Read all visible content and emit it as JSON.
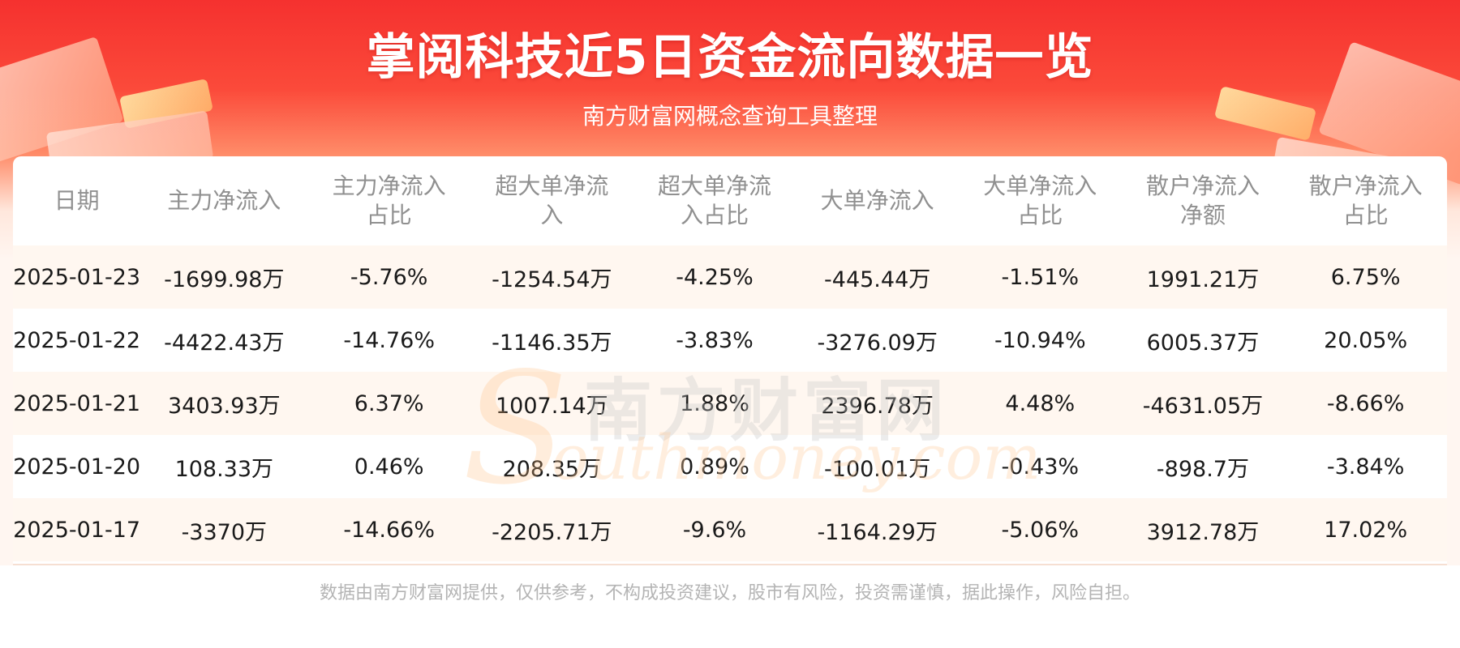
{
  "header": {
    "title": "掌阅科技近5日资金流向数据一览",
    "subtitle": "南方财富网概念查询工具整理"
  },
  "table": {
    "columns": [
      [
        "日期"
      ],
      [
        "主力净流入"
      ],
      [
        "主力净流入",
        "占比"
      ],
      [
        "超大单净流",
        "入"
      ],
      [
        "超大单净流",
        "入占比"
      ],
      [
        "大单净流入"
      ],
      [
        "大单净流入",
        "占比"
      ],
      [
        "散户净流入",
        "净额"
      ],
      [
        "散户净流入",
        "占比"
      ]
    ],
    "rows": [
      [
        "2025-01-23",
        "-1699.98万",
        "-5.76%",
        "-1254.54万",
        "-4.25%",
        "-445.44万",
        "-1.51%",
        "1991.21万",
        "6.75%"
      ],
      [
        "2025-01-22",
        "-4422.43万",
        "-14.76%",
        "-1146.35万",
        "-3.83%",
        "-3276.09万",
        "-10.94%",
        "6005.37万",
        "20.05%"
      ],
      [
        "2025-01-21",
        "3403.93万",
        "6.37%",
        "1007.14万",
        "1.88%",
        "2396.78万",
        "4.48%",
        "-4631.05万",
        "-8.66%"
      ],
      [
        "2025-01-20",
        "108.33万",
        "0.46%",
        "208.35万",
        "0.89%",
        "-100.01万",
        "-0.43%",
        "-898.7万",
        "-3.84%"
      ],
      [
        "2025-01-17",
        "-3370万",
        "-14.66%",
        "-2205.71万",
        "-9.6%",
        "-1164.29万",
        "-5.06%",
        "3912.78万",
        "17.02%"
      ]
    ]
  },
  "watermark": {
    "cn": "南方财富网",
    "en": "outhmoney.com",
    "s": "S"
  },
  "footer": {
    "disclaimer": "数据由南方财富网提供，仅供参考，不构成投资建议，股市有风险，投资需谨慎，据此操作，风险自担。"
  }
}
